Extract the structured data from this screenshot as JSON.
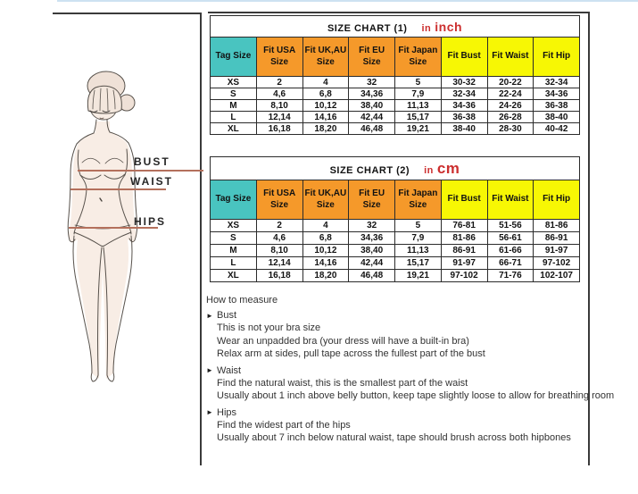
{
  "figure": {
    "labels": [
      {
        "text": "BUST"
      },
      {
        "text": "WAIST"
      },
      {
        "text": "HIPS"
      }
    ]
  },
  "size_charts": [
    {
      "title": "SIZE CHART (1)",
      "unit_prefix": "in",
      "unit": "inch",
      "columns": [
        "Tag Size",
        "Fit USA Size",
        "Fit UK,AU Size",
        "Fit EU Size",
        "Fit Japan Size",
        "Fit Bust",
        "Fit Waist",
        "Fit Hip"
      ],
      "rows": [
        [
          "XS",
          "2",
          "4",
          "32",
          "5",
          "30-32",
          "20-22",
          "32-34"
        ],
        [
          "S",
          "4,6",
          "6,8",
          "34,36",
          "7,9",
          "32-34",
          "22-24",
          "34-36"
        ],
        [
          "M",
          "8,10",
          "10,12",
          "38,40",
          "11,13",
          "34-36",
          "24-26",
          "36-38"
        ],
        [
          "L",
          "12,14",
          "14,16",
          "42,44",
          "15,17",
          "36-38",
          "26-28",
          "38-40"
        ],
        [
          "XL",
          "16,18",
          "18,20",
          "46,48",
          "19,21",
          "38-40",
          "28-30",
          "40-42"
        ]
      ]
    },
    {
      "title": "SIZE CHART (2)",
      "unit_prefix": "in",
      "unit": "cm",
      "columns": [
        "Tag Size",
        "Fit USA Size",
        "Fit UK,AU Size",
        "Fit EU Size",
        "Fit Japan Size",
        "Fit Bust",
        "Fit Waist",
        "Fit Hip"
      ],
      "rows": [
        [
          "XS",
          "2",
          "4",
          "32",
          "5",
          "76-81",
          "51-56",
          "81-86"
        ],
        [
          "S",
          "4,6",
          "6,8",
          "34,36",
          "7,9",
          "81-86",
          "56-61",
          "86-91"
        ],
        [
          "M",
          "8,10",
          "10,12",
          "38,40",
          "11,13",
          "86-91",
          "61-66",
          "91-97"
        ],
        [
          "L",
          "12,14",
          "14,16",
          "42,44",
          "15,17",
          "91-97",
          "66-71",
          "97-102"
        ],
        [
          "XL",
          "16,18",
          "18,20",
          "46,48",
          "19,21",
          "97-102",
          "71-76",
          "102-107"
        ]
      ]
    }
  ],
  "how_to_measure": {
    "title": "How to measure",
    "bullet_icon": "►",
    "sections": [
      {
        "heading": "Bust",
        "lines": [
          "This is not your bra size",
          "Wear an unpadded bra (your dress will have a built-in bra)",
          "Relax arm at sides, pull tape across the fullest part of the bust"
        ]
      },
      {
        "heading": "Waist",
        "lines": [
          "Find the natural waist, this is the smallest part of the waist",
          "Usually about 1 inch above belly button, keep tape slightly loose to allow for breathing room"
        ]
      },
      {
        "heading": "Hips",
        "lines": [
          "Find the widest part of the hips",
          "Usually about 7 inch below natural waist, tape should brush across both hipbones"
        ]
      }
    ]
  },
  "colors": {
    "tag_header": "#49c4c0",
    "fit_header": "#f5992a",
    "measure_header": "#f7f704",
    "unit_red": "#cc2f2f",
    "leader_line": "#b4705c",
    "top_strip": "#cde2f1",
    "border": "#2b2b2b"
  }
}
